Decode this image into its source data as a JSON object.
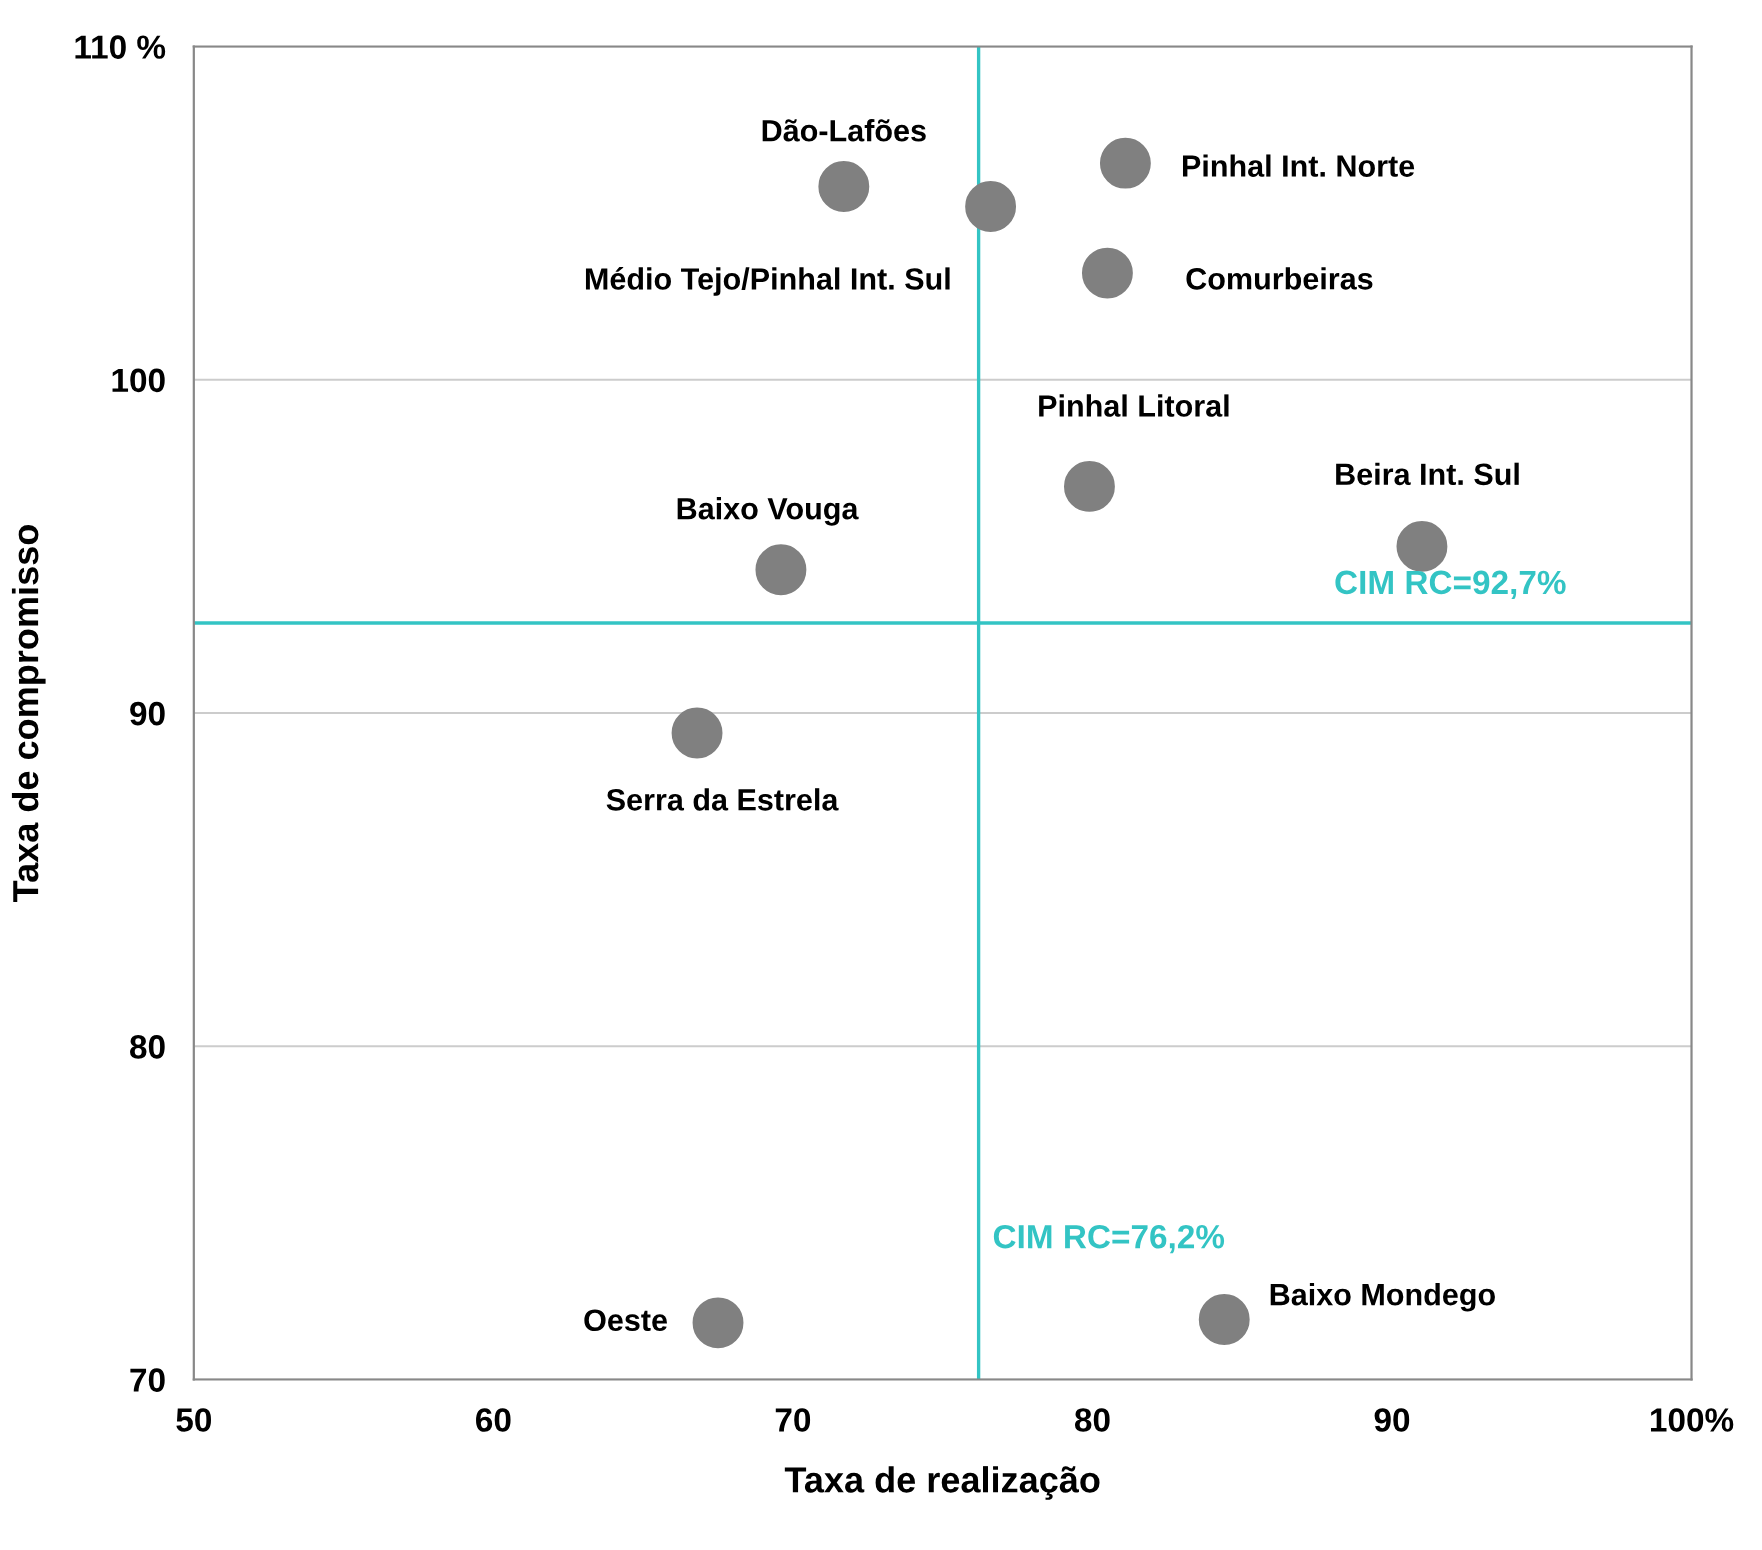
{
  "chart_data": {
    "type": "scatter",
    "xlabel": "Taxa de realização",
    "ylabel": "Taxa de compromisso",
    "x": [
      71.7,
      76.6,
      81.1,
      80.5,
      79.9,
      91.0,
      69.6,
      66.8,
      67.5,
      84.4
    ],
    "series": [
      {
        "color": "#808080",
        "values": [
          105.8,
          105.2,
          106.5,
          103.2,
          96.8,
          95.0,
          94.3,
          89.4,
          71.7,
          71.8
        ]
      }
    ],
    "annotations": [
      {
        "text": "Dão-Lafões",
        "x": 71.7,
        "y": 105.8
      },
      {
        "text": "Médio Tejo/Pinhal Int. Sul",
        "x": 76.6,
        "y": 105.2
      },
      {
        "text": "Pinhal Int. Norte",
        "x": 81.1,
        "y": 106.5
      },
      {
        "text": "Comurbeiras",
        "x": 80.5,
        "y": 103.2
      },
      {
        "text": "Pinhal Litoral",
        "x": 79.9,
        "y": 96.8
      },
      {
        "text": "Beira Int. Sul",
        "x": 91.0,
        "y": 95.0
      },
      {
        "text": "Baixo Vouga",
        "x": 69.6,
        "y": 94.3
      },
      {
        "text": "Serra da Estrela",
        "x": 66.8,
        "y": 89.4
      },
      {
        "text": "Oeste",
        "x": 67.5,
        "y": 71.7
      },
      {
        "text": "Baixo Mondego",
        "x": 84.4,
        "y": 71.8
      }
    ],
    "ref_lines": [
      {
        "axis": "y",
        "value": 92.7,
        "label": "CIM RC=92,7%",
        "color": "#33c4c4"
      },
      {
        "axis": "x",
        "value": 76.2,
        "label": "CIM RC=76,2%",
        "color": "#33c4c4"
      }
    ],
    "xlim": [
      50,
      100
    ],
    "xticks": [
      50,
      60,
      70,
      80,
      90,
      {
        "value": 100,
        "label": "100%"
      }
    ],
    "ylim": [
      70,
      110
    ],
    "yticks": [
      70,
      80,
      90,
      100,
      {
        "value": 110,
        "label": "110 %"
      }
    ],
    "grid": "y",
    "marker": "circle"
  }
}
